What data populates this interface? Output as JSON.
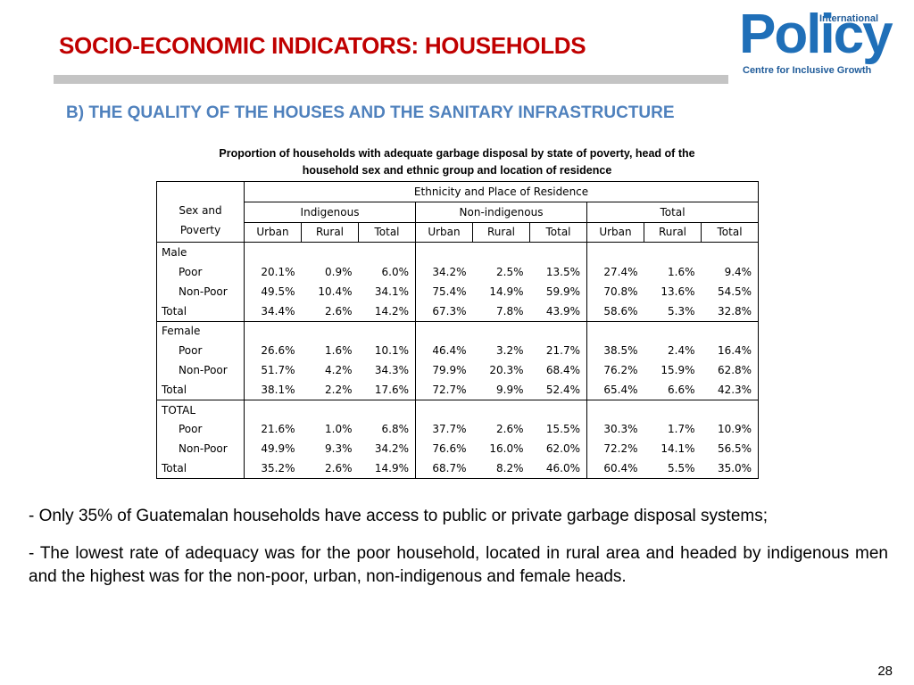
{
  "slide": {
    "title": "SOCIO-ECONOMIC INDICATORS: HOUSEHOLDS",
    "subtitle": "B) THE QUALITY OF THE HOUSES AND THE SANITARY INFRASTRUCTURE",
    "page_number": "28"
  },
  "logo": {
    "international": "International",
    "word": "Policy",
    "tagline": "Centre for Inclusive Growth"
  },
  "table": {
    "caption_line1": "Proportion of households with adequate garbage disposal by state of poverty, head of the",
    "caption_line2": "household sex and ethnic group and location of residence",
    "row_header": [
      "Sex and",
      "Poverty"
    ],
    "top_header": "Ethnicity and Place of Residence",
    "groups": [
      "Indigenous",
      "Non-indigenous",
      "Total"
    ],
    "subcols": [
      "Urban",
      "Rural",
      "Total",
      "Urban",
      "Rural",
      "Total",
      "Urban",
      "Rural",
      "Total"
    ],
    "rows": [
      {
        "label": "Male",
        "values": []
      },
      {
        "label": "Poor",
        "values": [
          "20.1%",
          "0.9%",
          "6.0%",
          "34.2%",
          "2.5%",
          "13.5%",
          "27.4%",
          "1.6%",
          "9.4%"
        ]
      },
      {
        "label": "Non-Poor",
        "values": [
          "49.5%",
          "10.4%",
          "34.1%",
          "75.4%",
          "14.9%",
          "59.9%",
          "70.8%",
          "13.6%",
          "54.5%"
        ]
      },
      {
        "label": "Total",
        "values": [
          "34.4%",
          "2.6%",
          "14.2%",
          "67.3%",
          "7.8%",
          "43.9%",
          "58.6%",
          "5.3%",
          "32.8%"
        ]
      },
      {
        "label": "Female",
        "values": []
      },
      {
        "label": "Poor",
        "values": [
          "26.6%",
          "1.6%",
          "10.1%",
          "46.4%",
          "3.2%",
          "21.7%",
          "38.5%",
          "2.4%",
          "16.4%"
        ]
      },
      {
        "label": "Non-Poor",
        "values": [
          "51.7%",
          "4.2%",
          "34.3%",
          "79.9%",
          "20.3%",
          "68.4%",
          "76.2%",
          "15.9%",
          "62.8%"
        ]
      },
      {
        "label": "Total",
        "values": [
          "38.1%",
          "2.2%",
          "17.6%",
          "72.7%",
          "9.9%",
          "52.4%",
          "65.4%",
          "6.6%",
          "42.3%"
        ]
      },
      {
        "label": "TOTAL",
        "values": []
      },
      {
        "label": "Poor",
        "values": [
          "21.6%",
          "1.0%",
          "6.8%",
          "37.7%",
          "2.6%",
          "15.5%",
          "30.3%",
          "1.7%",
          "10.9%"
        ]
      },
      {
        "label": "Non-Poor",
        "values": [
          "49.9%",
          "9.3%",
          "34.2%",
          "76.6%",
          "16.0%",
          "62.0%",
          "72.2%",
          "14.1%",
          "56.5%"
        ]
      },
      {
        "label": "Total",
        "values": [
          "35.2%",
          "2.6%",
          "14.9%",
          "68.7%",
          "8.2%",
          "46.0%",
          "60.4%",
          "5.5%",
          "35.0%"
        ]
      }
    ]
  },
  "bullets": [
    "- Only 35% of Guatemalan households have access to public or private garbage disposal systems;",
    "- The lowest rate of adequacy was for the poor household, located in rural area and headed by indigenous men and the highest was for the non-poor, urban, non-indigenous and female heads."
  ]
}
